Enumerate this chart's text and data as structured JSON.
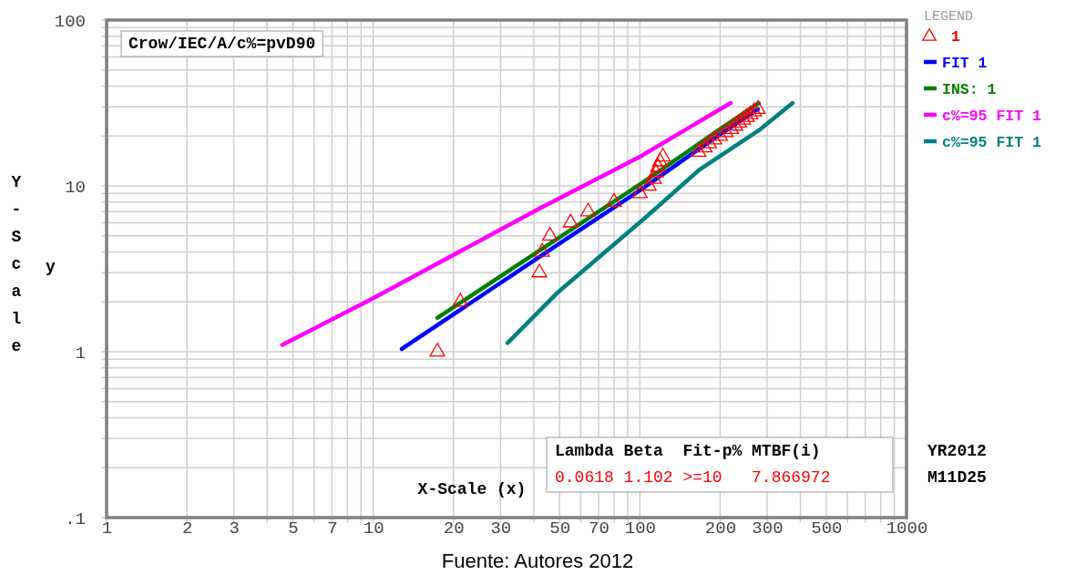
{
  "chart_data": {
    "type": "line",
    "ylabel": "Y-Scale",
    "xlabel": "X-Scale (x)",
    "legend_title": "LEGEND",
    "legend": "right",
    "log": "xy",
    "grid": true,
    "line_style": "solid",
    "annotations": [
      "Crow/IEC/A/c%=pvD90",
      "y",
      "Lambda Beta  Fit-p% MTBF(i)",
      "0.0618 1.102 >=10   7.866972",
      "YR2012",
      "M11D25",
      "Fuente: Autores 2012"
    ],
    "xlim": [
      1,
      1000
    ],
    "ylim": [
      0.1,
      100
    ],
    "xticks": [
      1,
      2,
      3,
      {
        "value": 4,
        "label": null
      },
      5,
      {
        "value": 6,
        "label": null
      },
      7,
      {
        "value": 8,
        "label": null
      },
      {
        "value": 9,
        "label": null
      },
      10,
      20,
      30,
      {
        "value": 40,
        "label": null
      },
      50,
      {
        "value": 60,
        "label": null
      },
      70,
      {
        "value": 80,
        "label": null
      },
      {
        "value": 90,
        "label": null
      },
      100,
      200,
      300,
      {
        "value": 400,
        "label": null
      },
      500,
      {
        "value": 600,
        "label": null
      },
      {
        "value": 700,
        "label": null
      },
      {
        "value": 800,
        "label": null
      },
      {
        "value": 900,
        "label": null
      },
      1000
    ],
    "yticks": [
      {
        "value": 0.1,
        "label": ".1"
      },
      {
        "value": 0.2,
        "label": null
      },
      {
        "value": 0.3,
        "label": null
      },
      {
        "value": 0.4,
        "label": null
      },
      {
        "value": 0.5,
        "label": null
      },
      {
        "value": 0.6,
        "label": null
      },
      {
        "value": 0.7,
        "label": null
      },
      {
        "value": 0.8,
        "label": null
      },
      {
        "value": 0.9,
        "label": null
      },
      1,
      {
        "value": 2,
        "label": null
      },
      {
        "value": 3,
        "label": null
      },
      {
        "value": 4,
        "label": null
      },
      {
        "value": 5,
        "label": null
      },
      {
        "value": 6,
        "label": null
      },
      {
        "value": 7,
        "label": null
      },
      {
        "value": 8,
        "label": null
      },
      {
        "value": 9,
        "label": null
      },
      10,
      {
        "value": 20,
        "label": null
      },
      {
        "value": 30,
        "label": null
      },
      {
        "value": 40,
        "label": null
      },
      {
        "value": 50,
        "label": null
      },
      {
        "value": 60,
        "label": null
      },
      {
        "value": 70,
        "label": null
      },
      {
        "value": 80,
        "label": null
      },
      {
        "value": 90,
        "label": null
      },
      100
    ],
    "series": [
      {
        "name": "1",
        "type": "scatter",
        "marker": "triangle",
        "color": "#ff0000",
        "x": [
          17.4,
          21.2,
          42,
          43,
          46,
          55,
          64,
          80,
          100,
          108,
          113,
          115,
          117,
          119,
          122,
          166,
          175,
          182,
          190,
          200,
          210,
          220,
          228,
          236,
          244,
          252,
          260,
          268,
          277
        ],
        "values": [
          1,
          2,
          3,
          4,
          5,
          6,
          7,
          8,
          9,
          10,
          11,
          12,
          13,
          14,
          15,
          16,
          17,
          18,
          19,
          20,
          21,
          22,
          23,
          24,
          25,
          26,
          27,
          28,
          29
        ]
      },
      {
        "name": "FIT 1",
        "color": "#0000ff",
        "x": [
          12.8,
          50,
          100,
          200,
          277
        ],
        "values": [
          1.04,
          4.5,
          9.4,
          20.5,
          29
        ]
      },
      {
        "name": "INS: 1",
        "color": "#008000",
        "x": [
          17.4,
          50,
          100,
          200,
          279
        ],
        "values": [
          1.6,
          4.9,
          10.2,
          22,
          31.6
        ]
      },
      {
        "name": "c%=95 FIT 1",
        "color": "#ff00ff",
        "x": [
          4.56,
          10,
          41.3,
          100,
          219
        ],
        "values": [
          1.1,
          2.1,
          7.2,
          15,
          31.6
        ]
      },
      {
        "name": "c%=95 FIT 1",
        "color": "#008080",
        "x": [
          31.9,
          49.5,
          103.7,
          166,
          279,
          374
        ],
        "values": [
          1.13,
          2.3,
          6.34,
          12.4,
          21.6,
          31.6
        ]
      }
    ]
  }
}
